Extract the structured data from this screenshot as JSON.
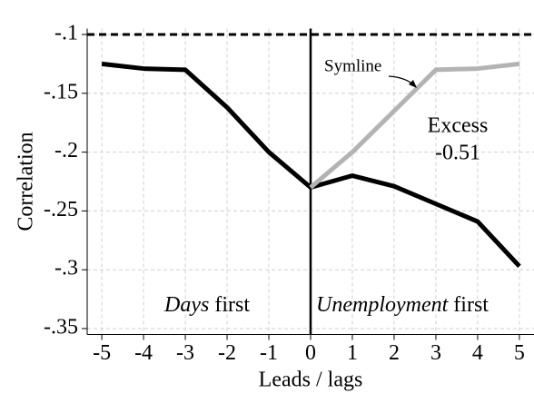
{
  "chart_data": {
    "type": "line",
    "xlabel": "Leads / lags",
    "ylabel": "Correlation",
    "x": [
      -5,
      -4,
      -3,
      -2,
      -1,
      0,
      1,
      2,
      3,
      4,
      5
    ],
    "series": [
      {
        "color": "#000000",
        "values": [
          -0.125,
          -0.129,
          -0.13,
          -0.162,
          -0.2,
          -0.23,
          -0.22,
          -0.229,
          -0.244,
          -0.259,
          -0.297
        ]
      },
      {
        "name": "Symline",
        "color": "#b3b3b3",
        "values": [
          null,
          null,
          null,
          null,
          null,
          -0.23,
          -0.2,
          -0.165,
          -0.13,
          -0.129,
          -0.125
        ]
      }
    ],
    "hline": -0.1,
    "vline": 0,
    "xlim": [
      -5.35,
      5.35
    ],
    "ylim": [
      -0.355,
      -0.095
    ],
    "xticks": [
      -5,
      -4,
      -3,
      -2,
      -1,
      0,
      1,
      2,
      3,
      4,
      5
    ],
    "yticks": [
      {
        "value": -0.1,
        "label": "-.1"
      },
      {
        "value": -0.15,
        "label": "-.15"
      },
      {
        "value": -0.2,
        "label": "-.2"
      },
      {
        "value": -0.25,
        "label": "-.25"
      },
      {
        "value": -0.3,
        "label": "-.3"
      },
      {
        "value": -0.35,
        "label": "-.35"
      }
    ],
    "grid": true,
    "annotations": {
      "excess_label": "Excess",
      "excess_value": "-0.51",
      "left_italic": "Days",
      "left_rest": " first",
      "right_italic": "Unemployment",
      "right_rest": " first"
    }
  }
}
